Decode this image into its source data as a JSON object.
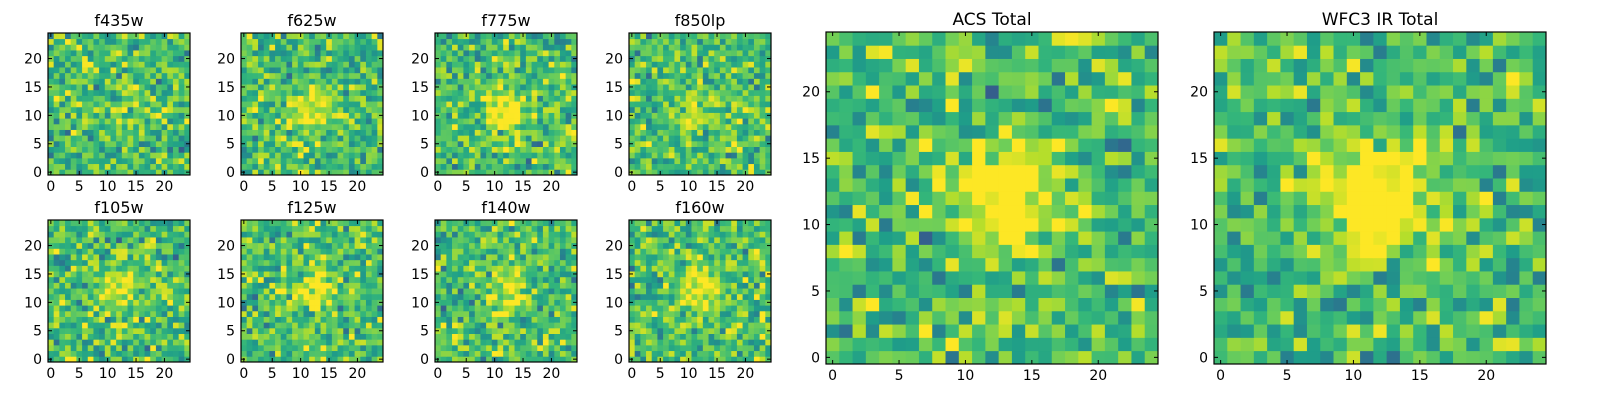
{
  "chart_data": [
    {
      "type": "heatmap",
      "title": "f435w",
      "grid_size": 25,
      "xlim": [
        0,
        24
      ],
      "ylim": [
        0,
        24
      ],
      "xticks": [
        0,
        5,
        10,
        15,
        20
      ],
      "yticks": [
        0,
        5,
        10,
        15,
        20
      ],
      "colormap": "viridis",
      "seed": 11,
      "blob": [
        13,
        10,
        0.15
      ]
    },
    {
      "type": "heatmap",
      "title": "f625w",
      "grid_size": 25,
      "xlim": [
        0,
        24
      ],
      "ylim": [
        0,
        24
      ],
      "xticks": [
        0,
        5,
        10,
        15,
        20
      ],
      "yticks": [
        0,
        5,
        10,
        15,
        20
      ],
      "colormap": "viridis",
      "seed": 23,
      "blob": [
        12,
        11,
        0.3
      ]
    },
    {
      "type": "heatmap",
      "title": "f775w",
      "grid_size": 25,
      "xlim": [
        0,
        24
      ],
      "ylim": [
        0,
        24
      ],
      "xticks": [
        0,
        5,
        10,
        15,
        20
      ],
      "yticks": [
        0,
        5,
        10,
        15,
        20
      ],
      "colormap": "viridis",
      "seed": 37,
      "blob": [
        12,
        11,
        0.35
      ]
    },
    {
      "type": "heatmap",
      "title": "f850lp",
      "grid_size": 25,
      "xlim": [
        0,
        24
      ],
      "ylim": [
        0,
        24
      ],
      "xticks": [
        0,
        5,
        10,
        15,
        20
      ],
      "yticks": [
        0,
        5,
        10,
        15,
        20
      ],
      "colormap": "viridis",
      "seed": 41,
      "blob": [
        12,
        11,
        0.2
      ]
    },
    {
      "type": "heatmap",
      "title": "f105w",
      "grid_size": 25,
      "xlim": [
        0,
        24
      ],
      "ylim": [
        0,
        24
      ],
      "xticks": [
        0,
        5,
        10,
        15,
        20
      ],
      "yticks": [
        0,
        5,
        10,
        15,
        20
      ],
      "colormap": "viridis",
      "seed": 53,
      "blob": [
        12,
        12,
        0.25
      ]
    },
    {
      "type": "heatmap",
      "title": "f125w",
      "grid_size": 25,
      "xlim": [
        0,
        24
      ],
      "ylim": [
        0,
        24
      ],
      "xticks": [
        0,
        5,
        10,
        15,
        20
      ],
      "yticks": [
        0,
        5,
        10,
        15,
        20
      ],
      "colormap": "viridis",
      "seed": 67,
      "blob": [
        12,
        12,
        0.3
      ]
    },
    {
      "type": "heatmap",
      "title": "f140w",
      "grid_size": 25,
      "xlim": [
        0,
        24
      ],
      "ylim": [
        0,
        24
      ],
      "xticks": [
        0,
        5,
        10,
        15,
        20
      ],
      "yticks": [
        0,
        5,
        10,
        15,
        20
      ],
      "colormap": "viridis",
      "seed": 71,
      "blob": [
        12,
        12,
        0.3
      ]
    },
    {
      "type": "heatmap",
      "title": "f160w",
      "grid_size": 25,
      "xlim": [
        0,
        24
      ],
      "ylim": [
        0,
        24
      ],
      "xticks": [
        0,
        5,
        10,
        15,
        20
      ],
      "yticks": [
        0,
        5,
        10,
        15,
        20
      ],
      "colormap": "viridis",
      "seed": 83,
      "blob": [
        12,
        12,
        0.4
      ]
    },
    {
      "type": "heatmap",
      "title": "ACS Total",
      "grid_size": 25,
      "xlim": [
        0,
        24
      ],
      "ylim": [
        0,
        24
      ],
      "xticks": [
        0,
        5,
        10,
        15,
        20
      ],
      "yticks": [
        0,
        5,
        10,
        15,
        20
      ],
      "colormap": "viridis",
      "seed": 97,
      "blob": [
        13,
        12,
        0.5
      ]
    },
    {
      "type": "heatmap",
      "title": "WFC3 IR Total",
      "grid_size": 25,
      "xlim": [
        0,
        24
      ],
      "ylim": [
        0,
        24
      ],
      "xticks": [
        0,
        5,
        10,
        15,
        20
      ],
      "yticks": [
        0,
        5,
        10,
        15,
        20
      ],
      "colormap": "viridis",
      "seed": 101,
      "blob": [
        12,
        12,
        0.55
      ]
    }
  ],
  "colors": {
    "viridis_stops": [
      "#440154",
      "#482878",
      "#3e4989",
      "#31688e",
      "#26828e",
      "#1f9e89",
      "#35b779",
      "#6ece58",
      "#b5de2b",
      "#fde725"
    ],
    "axis": "#000000",
    "background": "#ffffff"
  }
}
